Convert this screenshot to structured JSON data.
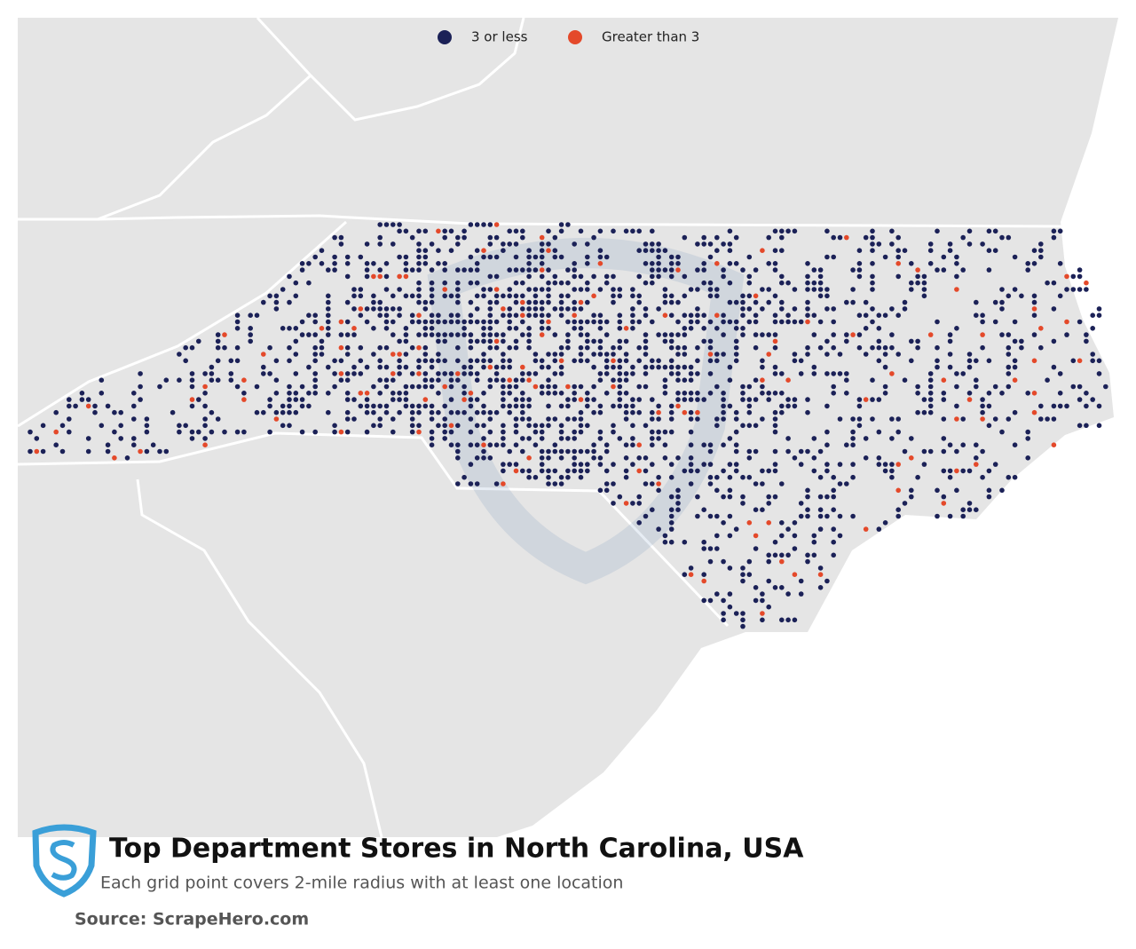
{
  "legend": {
    "items": [
      {
        "label": "3 or less",
        "color": "#1b2157"
      },
      {
        "label": "Greater than 3",
        "color": "#e4492a"
      }
    ]
  },
  "title": "Top Department Stores in North Carolina, USA",
  "subtitle": "Each grid point covers 2-mile radius with at least one location",
  "source": "Source: ScrapeHero.com"
}
